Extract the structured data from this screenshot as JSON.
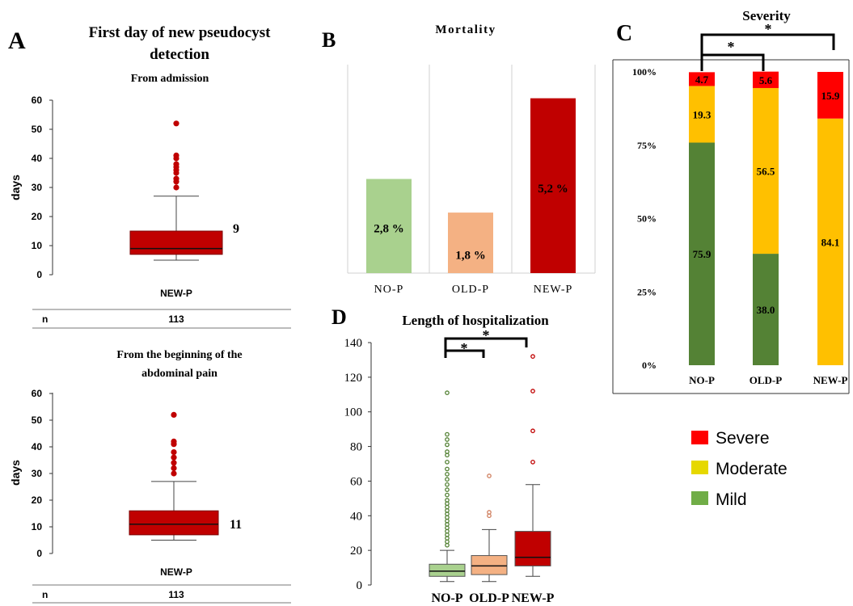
{
  "panels": {
    "A": {
      "letter": "A",
      "title_line1": "First day of new pseudocyst",
      "title_line2": "detection",
      "top": {
        "subtitle": "From admission",
        "ylabel": "days",
        "yticks": [
          "0",
          "10",
          "20",
          "30",
          "40",
          "50",
          "60"
        ],
        "category": "NEW-P",
        "median_label": "9",
        "n_label": "n",
        "n_value": "113"
      },
      "bottom": {
        "subtitle_line1": "From the beginning of the",
        "subtitle_line2": "abdominal pain",
        "ylabel": "days",
        "yticks": [
          "0",
          "10",
          "20",
          "30",
          "40",
          "50",
          "60"
        ],
        "category": "NEW-P",
        "median_label": "11",
        "n_label": "n",
        "n_value": "113"
      }
    },
    "B": {
      "letter": "B",
      "title": "Mortality",
      "categories": [
        "NO-P",
        "OLD-P",
        "NEW-P"
      ],
      "value_labels": [
        "2,8 %",
        "1,8 %",
        "5,2 %"
      ]
    },
    "C": {
      "letter": "C",
      "title": "Severity",
      "yticks": [
        "0%",
        "25%",
        "50%",
        "75%",
        "100%"
      ],
      "categories": [
        "NO-P",
        "OLD-P",
        "NEW-P"
      ],
      "sig_marks": [
        "*",
        "*"
      ],
      "legend": [
        "Severe",
        "Moderate",
        "Mild"
      ]
    },
    "D": {
      "letter": "D",
      "title": "Length  of hospitalization",
      "yticks": [
        "0",
        "20",
        "40",
        "60",
        "80",
        "100",
        "120",
        "140"
      ],
      "categories": [
        "NO-P",
        "OLD-P",
        "NEW-P"
      ],
      "sig_marks": [
        "*",
        "*"
      ]
    }
  },
  "colors": {
    "dark_red": "#c00000",
    "red": "#ff0000",
    "green_light": "#a9d18e",
    "orange_light": "#f4b183",
    "yellow": "#ffc000",
    "green_dark": "#548235",
    "legend_yellow": "#e6d800",
    "legend_green": "#70ad47"
  },
  "chart_data": [
    {
      "type": "box",
      "title": "From admission",
      "ylabel": "days",
      "ylim": [
        0,
        60
      ],
      "categories": [
        "NEW-P"
      ],
      "boxes": [
        {
          "whisker_low": 5,
          "q1": 7,
          "median": 9,
          "q3": 15,
          "whisker_high": 27,
          "outliers": [
            30,
            32,
            33,
            35,
            36,
            37,
            38,
            40,
            41,
            52
          ]
        }
      ]
    },
    {
      "type": "box",
      "title": "From the beginning of the abdominal pain",
      "ylabel": "days",
      "ylim": [
        0,
        60
      ],
      "categories": [
        "NEW-P"
      ],
      "boxes": [
        {
          "whisker_low": 5,
          "q1": 7,
          "median": 11,
          "q3": 16,
          "whisker_high": 27,
          "outliers": [
            30,
            32,
            34,
            36,
            38,
            41,
            42,
            52
          ]
        }
      ]
    },
    {
      "type": "bar",
      "title": "Mortality",
      "categories": [
        "NO-P",
        "OLD-P",
        "NEW-P"
      ],
      "values": [
        2.8,
        1.8,
        5.2
      ],
      "ylim": [
        0,
        6.2
      ]
    },
    {
      "type": "bar",
      "stacked": true,
      "title": "Severity",
      "categories": [
        "NO-P",
        "OLD-P",
        "NEW-P"
      ],
      "ylim": [
        0,
        100
      ],
      "series": [
        {
          "name": "Mild",
          "values": [
            75.9,
            38.0,
            0
          ]
        },
        {
          "name": "Moderate",
          "values": [
            19.3,
            56.5,
            84.1
          ]
        },
        {
          "name": "Severe",
          "values": [
            4.7,
            5.6,
            15.9
          ]
        }
      ]
    },
    {
      "type": "box",
      "title": "Length  of hospitalization",
      "ylim": [
        0,
        140
      ],
      "categories": [
        "NO-P",
        "OLD-P",
        "NEW-P"
      ],
      "boxes": [
        {
          "whisker_low": 2,
          "q1": 5,
          "median": 8,
          "q3": 12,
          "whisker_high": 20,
          "outliers": [
            23,
            25,
            27,
            29,
            31,
            33,
            35,
            37,
            39,
            41,
            43,
            45,
            47,
            49,
            52,
            55,
            58,
            61,
            64,
            67,
            71,
            75,
            77,
            81,
            84,
            87,
            111
          ]
        },
        {
          "whisker_low": 2,
          "q1": 6,
          "median": 11,
          "q3": 17,
          "whisker_high": 32,
          "outliers": [
            40,
            42,
            63
          ]
        },
        {
          "whisker_low": 5,
          "q1": 11,
          "median": 16,
          "q3": 31,
          "whisker_high": 58,
          "outliers": [
            71,
            89,
            112,
            132
          ]
        }
      ]
    }
  ]
}
